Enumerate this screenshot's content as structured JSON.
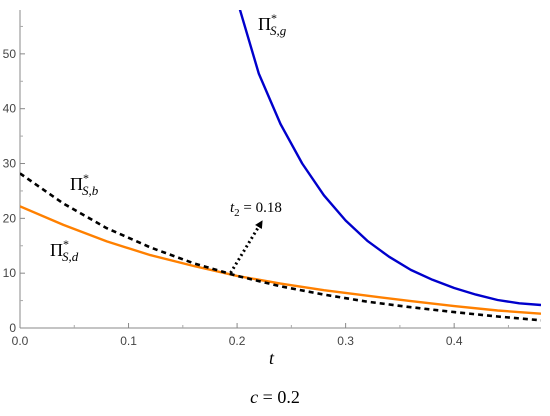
{
  "chart_data": {
    "type": "line",
    "xlabel": "t",
    "ylabel": "",
    "xlim": [
      0,
      0.48
    ],
    "ylim": [
      0,
      58
    ],
    "x_ticks": [
      "0.0",
      "0.1",
      "0.2",
      "0.3",
      "0.4"
    ],
    "y_ticks": [
      "0",
      "10",
      "20",
      "30",
      "40",
      "50"
    ],
    "grid": false,
    "series": [
      {
        "name": "Π*S,g",
        "label_main": "Π",
        "label_sup": "*",
        "label_sub": "S,g",
        "color": "#0000cc",
        "style": "solid",
        "x": [
          0.2,
          0.22,
          0.24,
          0.26,
          0.28,
          0.3,
          0.32,
          0.34,
          0.36,
          0.38,
          0.4,
          0.42,
          0.44,
          0.46,
          0.48
        ],
        "y": [
          59.8,
          46.4,
          37.2,
          30.0,
          24.2,
          19.6,
          15.9,
          13.0,
          10.6,
          8.8,
          7.3,
          6.1,
          5.1,
          4.5,
          4.2
        ]
      },
      {
        "name": "Π*S,b",
        "label_main": "Π",
        "label_sup": "*",
        "label_sub": "S,b",
        "color": "#000000",
        "style": "dashed",
        "x": [
          0.0,
          0.04,
          0.08,
          0.12,
          0.16,
          0.2,
          0.24,
          0.28,
          0.32,
          0.36,
          0.4,
          0.44,
          0.48
        ],
        "y": [
          28.2,
          22.7,
          18.2,
          14.7,
          11.8,
          9.5,
          7.6,
          6.1,
          4.8,
          3.8,
          2.9,
          2.1,
          1.4
        ]
      },
      {
        "name": "Π*S,d",
        "label_main": "Π",
        "label_sup": "*",
        "label_sub": "S,d",
        "color": "#ff8000",
        "style": "solid",
        "x": [
          0.0,
          0.04,
          0.08,
          0.12,
          0.16,
          0.2,
          0.24,
          0.28,
          0.32,
          0.36,
          0.4,
          0.44,
          0.48
        ],
        "y": [
          22.2,
          18.8,
          15.8,
          13.3,
          11.3,
          9.5,
          8.1,
          6.9,
          5.9,
          4.9,
          4.0,
          3.2,
          2.6
        ]
      }
    ],
    "annotations": [
      {
        "text_main": "t",
        "text_sub": "2",
        "text_rest": " = 0.18",
        "point": [
          0.194,
          9.5
        ],
        "style": "dotted-arrow"
      }
    ],
    "caption_var": "c",
    "caption_rest": " = 0.2"
  }
}
